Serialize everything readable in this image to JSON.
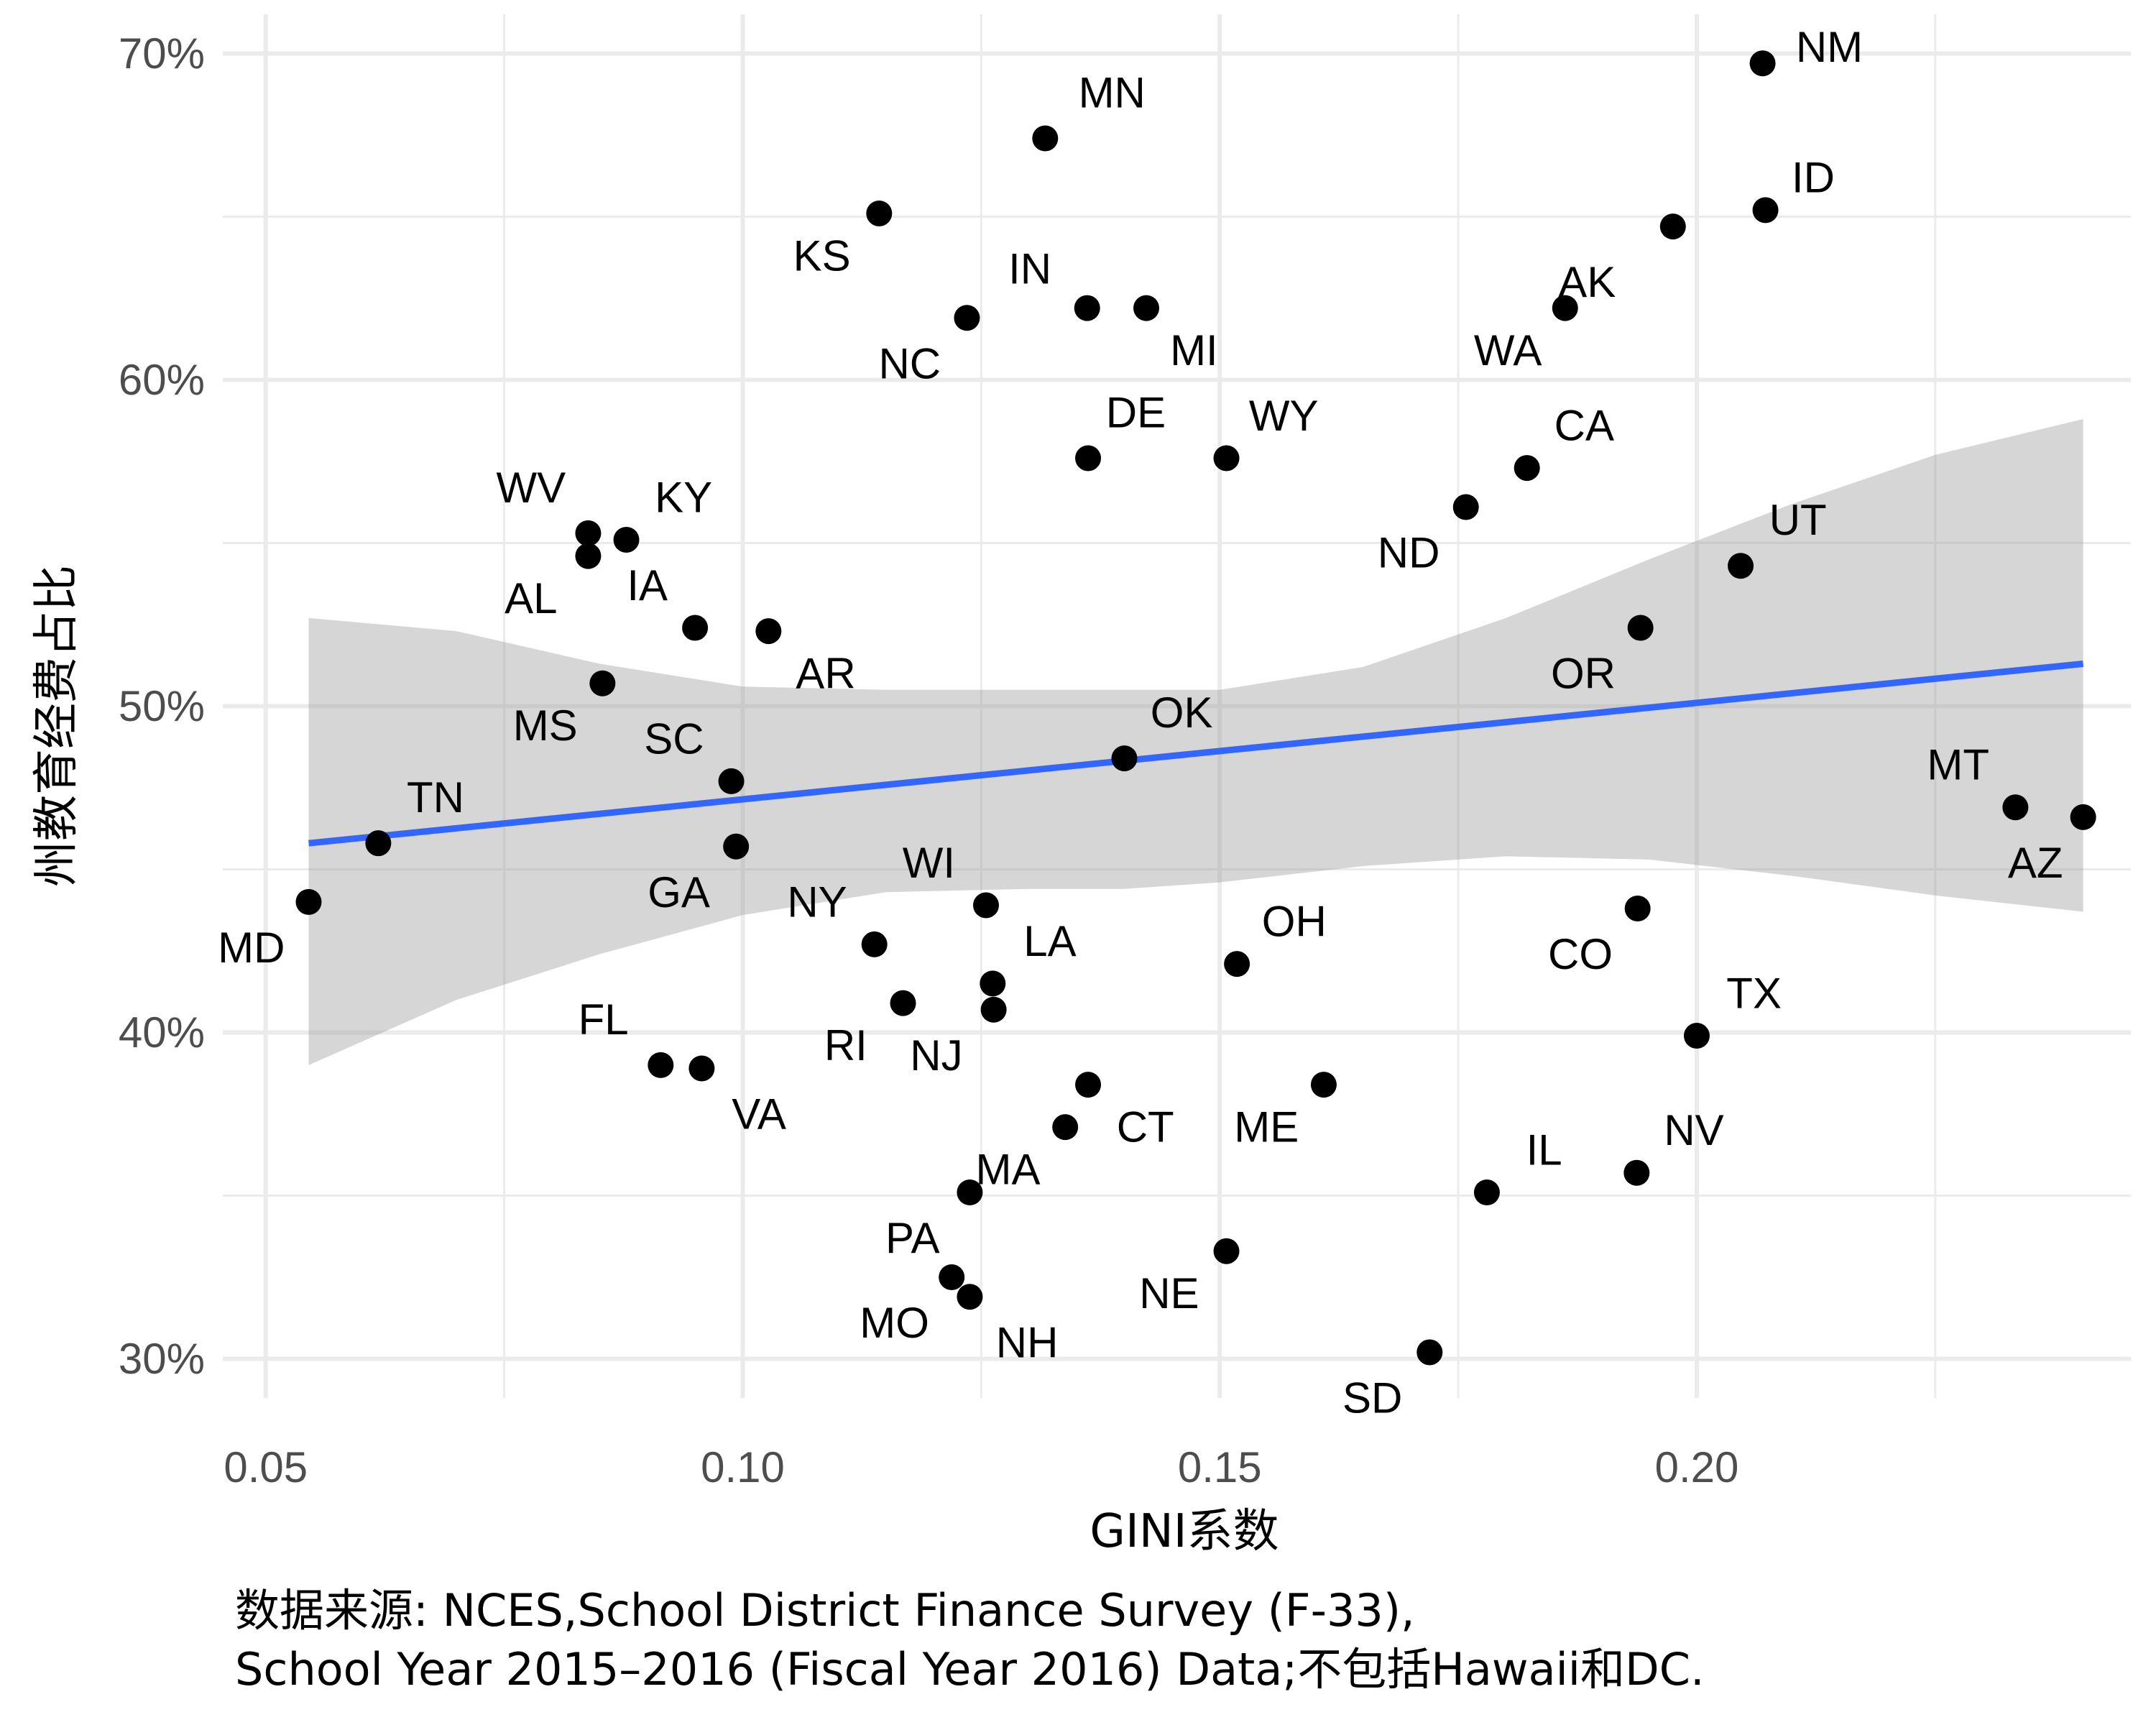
{
  "chart_data": {
    "type": "scatter",
    "xlabel": "GINI系数",
    "ylabel": "州教育经费占比",
    "xlim": [
      0.0455,
      0.2455
    ],
    "ylim": [
      0.288,
      0.712
    ],
    "x_ticks": [
      {
        "value": 0.05,
        "label": "0.05"
      },
      {
        "value": 0.1,
        "label": "0.10"
      },
      {
        "value": 0.15,
        "label": "0.15"
      },
      {
        "value": 0.2,
        "label": "0.20"
      }
    ],
    "x_minor_ticks": [
      0.075,
      0.125,
      0.175,
      0.225
    ],
    "y_ticks": [
      {
        "value": 0.3,
        "label": "30%"
      },
      {
        "value": 0.4,
        "label": "40%"
      },
      {
        "value": 0.5,
        "label": "50%"
      },
      {
        "value": 0.6,
        "label": "60%"
      },
      {
        "value": 0.7,
        "label": "70%"
      }
    ],
    "y_minor_ticks": [
      0.35,
      0.45,
      0.55,
      0.65
    ],
    "grid": true,
    "legend": "none",
    "points": [
      {
        "label": "NM",
        "x": 0.2069,
        "y": 0.697,
        "lx": 0.2139,
        "ly": 0.702
      },
      {
        "label": "MN",
        "x": 0.1317,
        "y": 0.674,
        "lx": 0.1387,
        "ly": 0.688
      },
      {
        "label": "ID",
        "x": 0.2072,
        "y": 0.652,
        "lx": 0.2122,
        "ly": 0.662
      },
      {
        "label": "KS",
        "x": 0.1143,
        "y": 0.651,
        "lx": 0.1083,
        "ly": 0.638
      },
      {
        "label": "AK",
        "x": 0.1975,
        "y": 0.647,
        "lx": 0.1885,
        "ly": 0.63
      },
      {
        "label": "IN",
        "x": 0.1361,
        "y": 0.622,
        "lx": 0.1301,
        "ly": 0.634
      },
      {
        "label": "MI",
        "x": 0.1423,
        "y": 0.622,
        "lx": 0.1473,
        "ly": 0.609
      },
      {
        "label": "WA",
        "x": 0.1862,
        "y": 0.622,
        "lx": 0.1802,
        "ly": 0.609
      },
      {
        "label": "NC",
        "x": 0.1235,
        "y": 0.619,
        "lx": 0.1175,
        "ly": 0.605
      },
      {
        "label": "DE",
        "x": 0.1362,
        "y": 0.576,
        "lx": 0.1412,
        "ly": 0.59
      },
      {
        "label": "WY",
        "x": 0.1507,
        "y": 0.576,
        "lx": 0.1567,
        "ly": 0.589
      },
      {
        "label": "CA",
        "x": 0.1822,
        "y": 0.573,
        "lx": 0.1882,
        "ly": 0.586
      },
      {
        "label": "ND",
        "x": 0.1758,
        "y": 0.561,
        "lx": 0.1698,
        "ly": 0.547
      },
      {
        "label": "KY",
        "x": 0.0878,
        "y": 0.551,
        "lx": 0.0938,
        "ly": 0.564
      },
      {
        "label": "WV",
        "x": 0.0838,
        "y": 0.553,
        "lx": 0.0778,
        "ly": 0.567
      },
      {
        "label": "AL",
        "x": 0.0838,
        "y": 0.546,
        "lx": 0.0778,
        "ly": 0.533
      },
      {
        "label": "UT",
        "x": 0.2046,
        "y": 0.543,
        "lx": 0.2106,
        "ly": 0.557
      },
      {
        "label": "IA",
        "x": 0.095,
        "y": 0.524,
        "lx": 0.09,
        "ly": 0.537
      },
      {
        "label": "OR",
        "x": 0.1941,
        "y": 0.524,
        "lx": 0.1881,
        "ly": 0.51
      },
      {
        "label": "AR",
        "x": 0.1027,
        "y": 0.523,
        "lx": 0.1087,
        "ly": 0.51
      },
      {
        "label": "MS",
        "x": 0.0853,
        "y": 0.507,
        "lx": 0.0793,
        "ly": 0.494
      },
      {
        "label": "OK",
        "x": 0.14,
        "y": 0.484,
        "lx": 0.146,
        "ly": 0.498
      },
      {
        "label": "SC",
        "x": 0.0988,
        "y": 0.477,
        "lx": 0.0928,
        "ly": 0.49
      },
      {
        "label": "MT",
        "x": 0.2334,
        "y": 0.469,
        "lx": 0.2274,
        "ly": 0.482
      },
      {
        "label": "AZ",
        "x": 0.2405,
        "y": 0.466,
        "lx": 0.2355,
        "ly": 0.452
      },
      {
        "label": "TN",
        "x": 0.0618,
        "y": 0.458,
        "lx": 0.0678,
        "ly": 0.472
      },
      {
        "label": "GA",
        "x": 0.0993,
        "y": 0.457,
        "lx": 0.0933,
        "ly": 0.443
      },
      {
        "label": "MD",
        "x": 0.0545,
        "y": 0.44,
        "lx": 0.0485,
        "ly": 0.426
      },
      {
        "label": "WI",
        "x": 0.1255,
        "y": 0.439,
        "lx": 0.1195,
        "ly": 0.452
      },
      {
        "label": "CO",
        "x": 0.1938,
        "y": 0.438,
        "lx": 0.1878,
        "ly": 0.424
      },
      {
        "label": "NY",
        "x": 0.1138,
        "y": 0.427,
        "lx": 0.1078,
        "ly": 0.44
      },
      {
        "label": "OH",
        "x": 0.1518,
        "y": 0.421,
        "lx": 0.1578,
        "ly": 0.434
      },
      {
        "label": "LA",
        "x": 0.1262,
        "y": 0.415,
        "lx": 0.1322,
        "ly": 0.428
      },
      {
        "label": "RI",
        "x": 0.1168,
        "y": 0.409,
        "lx": 0.1108,
        "ly": 0.396
      },
      {
        "label": "NJ",
        "x": 0.1263,
        "y": 0.407,
        "lx": 0.1203,
        "ly": 0.393
      },
      {
        "label": "TX",
        "x": 0.2,
        "y": 0.399,
        "lx": 0.206,
        "ly": 0.412
      },
      {
        "label": "FL",
        "x": 0.0914,
        "y": 0.39,
        "lx": 0.0854,
        "ly": 0.404
      },
      {
        "label": "VA",
        "x": 0.0957,
        "y": 0.389,
        "lx": 0.1017,
        "ly": 0.375
      },
      {
        "label": "CT",
        "x": 0.1362,
        "y": 0.384,
        "lx": 0.1422,
        "ly": 0.371
      },
      {
        "label": "ME",
        "x": 0.1609,
        "y": 0.384,
        "lx": 0.1549,
        "ly": 0.371
      },
      {
        "label": "MA",
        "x": 0.1338,
        "y": 0.371,
        "lx": 0.1278,
        "ly": 0.358
      },
      {
        "label": "NV",
        "x": 0.1937,
        "y": 0.357,
        "lx": 0.1997,
        "ly": 0.37
      },
      {
        "label": "IL",
        "x": 0.178,
        "y": 0.351,
        "lx": 0.184,
        "ly": 0.364
      },
      {
        "label": "PA",
        "x": 0.1238,
        "y": 0.351,
        "lx": 0.1178,
        "ly": 0.337
      },
      {
        "label": "NE",
        "x": 0.1507,
        "y": 0.333,
        "lx": 0.1447,
        "ly": 0.32
      },
      {
        "label": "MO",
        "x": 0.1219,
        "y": 0.325,
        "lx": 0.1159,
        "ly": 0.311
      },
      {
        "label": "NH",
        "x": 0.1238,
        "y": 0.319,
        "lx": 0.1298,
        "ly": 0.305
      },
      {
        "label": "SD",
        "x": 0.172,
        "y": 0.302,
        "lx": 0.166,
        "ly": 0.288
      }
    ],
    "trend": {
      "x": [
        0.0545,
        0.2405
      ],
      "y": [
        0.458,
        0.513
      ],
      "color": "#3366FF"
    },
    "confidence_band": {
      "color": "#999999",
      "x": [
        0.0545,
        0.07,
        0.085,
        0.1,
        0.115,
        0.13,
        0.14,
        0.15,
        0.165,
        0.18,
        0.195,
        0.21,
        0.225,
        0.2405
      ],
      "upper": [
        0.527,
        0.523,
        0.513,
        0.506,
        0.505,
        0.505,
        0.505,
        0.505,
        0.512,
        0.527,
        0.545,
        0.562,
        0.577,
        0.588
      ],
      "lower": [
        0.39,
        0.41,
        0.424,
        0.436,
        0.443,
        0.444,
        0.444,
        0.446,
        0.451,
        0.454,
        0.453,
        0.448,
        0.442,
        0.437
      ]
    }
  },
  "caption": {
    "line1": "数据来源: NCES,School District Finance Survey (F-33),",
    "line2": "School Year 2015–2016 (Fiscal Year 2016) Data;不包括Hawaii和DC."
  }
}
